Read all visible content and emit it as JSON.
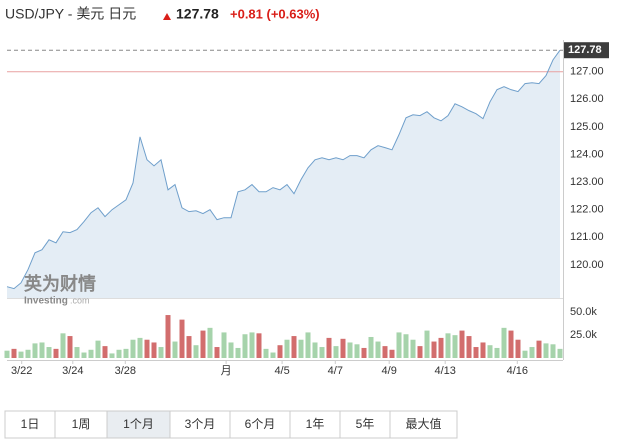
{
  "header": {
    "title": "USD/JPY - 美元 日元",
    "price": "127.78",
    "change": "+0.81 (+0.63%)"
  },
  "watermark": {
    "cn": "英为财情",
    "brand": "Investing",
    "domain": ".com"
  },
  "chart_data": [
    {
      "type": "area",
      "color": "#6f9fcb",
      "fill": "#e4edf5",
      "ref_line": 127,
      "ref_color": "#e8a1a1",
      "ylim": [
        118.8,
        128.15
      ],
      "xlim": [
        0,
        79
      ],
      "yticks": [
        {
          "value": 120,
          "label": "120.00"
        },
        {
          "value": 121,
          "label": "121.00"
        },
        {
          "value": 122,
          "label": "122.00"
        },
        {
          "value": 123,
          "label": "123.00"
        },
        {
          "value": 124,
          "label": "124.00"
        },
        {
          "value": 125,
          "label": "125.00"
        },
        {
          "value": 126,
          "label": "126.00"
        },
        {
          "value": 127,
          "label": "127.00"
        }
      ],
      "xticks": [
        {
          "value": 2.1,
          "label": "3/22"
        },
        {
          "value": 9.4,
          "label": "3/24"
        },
        {
          "value": 16.9,
          "label": "3/28"
        },
        {
          "value": 31.3,
          "label": "月"
        },
        {
          "value": 39.3,
          "label": "4/5"
        },
        {
          "value": 46.9,
          "label": "4/7"
        },
        {
          "value": 54.6,
          "label": "4/9"
        },
        {
          "value": 62.6,
          "label": "4/13"
        },
        {
          "value": 72.9,
          "label": "4/16"
        }
      ],
      "values": [
        119.21,
        119.14,
        119.35,
        119.83,
        120.44,
        120.55,
        120.91,
        120.8,
        121.2,
        121.17,
        121.28,
        121.57,
        121.89,
        122.07,
        121.75,
        122.0,
        122.18,
        122.36,
        122.97,
        124.64,
        123.81,
        123.59,
        123.81,
        122.72,
        122.91,
        122.07,
        121.93,
        121.96,
        121.86,
        122.0,
        121.64,
        121.71,
        121.71,
        122.65,
        122.72,
        122.91,
        122.65,
        122.65,
        122.8,
        122.72,
        122.91,
        122.58,
        123.09,
        123.52,
        123.81,
        123.88,
        123.81,
        123.88,
        123.81,
        123.96,
        123.96,
        123.88,
        124.17,
        124.32,
        124.25,
        124.17,
        124.72,
        125.33,
        125.44,
        125.41,
        125.55,
        125.33,
        125.22,
        125.41,
        125.84,
        125.73,
        125.59,
        125.48,
        125.3,
        125.91,
        126.35,
        126.46,
        126.35,
        126.28,
        126.57,
        126.6,
        126.57,
        126.86,
        127.43,
        127.78
      ]
    },
    {
      "type": "bar",
      "colors": {
        "up": "#a6d3ab",
        "down": "#d26d6d"
      },
      "ylim": [
        0,
        58000
      ],
      "yticks": [
        {
          "value": 25000,
          "label": "25.0k"
        },
        {
          "value": 50000,
          "label": "50.0k"
        }
      ],
      "values": [
        8000,
        10000,
        7000,
        9000,
        16000,
        17000,
        12000,
        10000,
        27000,
        24000,
        12000,
        6000,
        9000,
        19000,
        13000,
        5000,
        9000,
        10000,
        20000,
        22000,
        20000,
        17000,
        12000,
        47000,
        18000,
        42000,
        24000,
        14000,
        30000,
        33000,
        12000,
        28000,
        17000,
        11000,
        26000,
        28000,
        27000,
        10000,
        6000,
        14000,
        20000,
        24000,
        20000,
        28000,
        17000,
        12000,
        22000,
        13000,
        21000,
        17000,
        15000,
        11000,
        23000,
        18000,
        13000,
        9000,
        28000,
        26000,
        20000,
        13000,
        30000,
        18000,
        22000,
        27000,
        25000,
        30000,
        24000,
        12000,
        17000,
        14000,
        11000,
        33000,
        30000,
        20000,
        8000,
        12000,
        19000,
        16000,
        15000,
        10000
      ]
    }
  ],
  "range_buttons": [
    "1日",
    "1周",
    "1个月",
    "3个月",
    "6个月",
    "1年",
    "5年",
    "最大值"
  ],
  "selected": 2
}
